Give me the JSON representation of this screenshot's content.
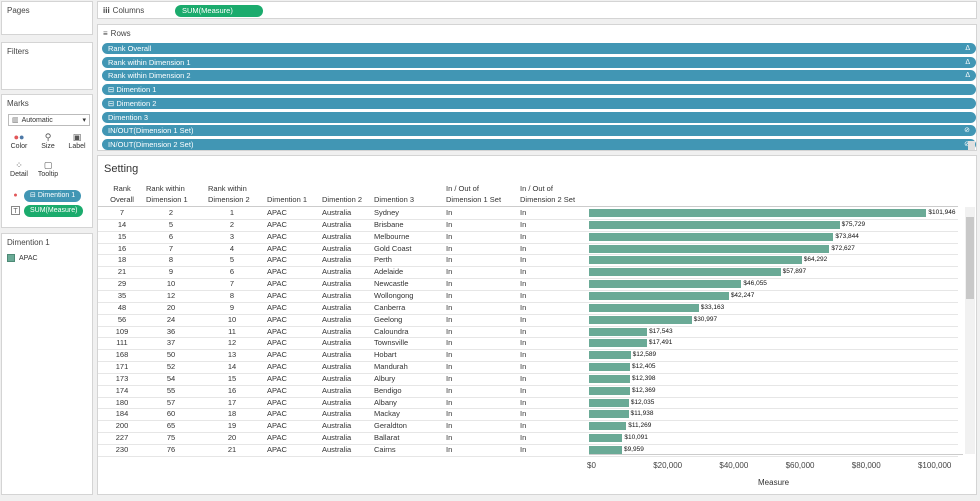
{
  "left": {
    "pages_title": "Pages",
    "filters_title": "Filters",
    "marks_title": "Marks",
    "mark_type": "Automatic",
    "mark_buttons": [
      "Color",
      "Size",
      "Label",
      "Detail",
      "Tooltip"
    ],
    "mark_fields": [
      {
        "label": "Dimention 1",
        "color": "#4196b4"
      },
      {
        "label": "SUM(Measure)",
        "color": "#1bab6d"
      }
    ],
    "legend_title": "Dimention 1",
    "legend_item": "APAC",
    "legend_color": "#6aaa96"
  },
  "shelves": {
    "columns_label": "Columns",
    "columns_pill": "SUM(Measure)",
    "rows_label": "Rows",
    "row_pills": [
      {
        "label": "Rank Overall",
        "icon": "Δ"
      },
      {
        "label": "Rank within Dimension 1",
        "icon": "Δ"
      },
      {
        "label": "Rank within Dimension 2",
        "icon": "Δ"
      },
      {
        "label": "Dimention 1",
        "icon": ""
      },
      {
        "label": "Dimention 2",
        "icon": ""
      },
      {
        "label": "Dimention 3",
        "icon": ""
      },
      {
        "label": "IN/OUT(Dimension 1 Set)",
        "icon": "⊘"
      },
      {
        "label": "IN/OUT(Dimension 2 Set)",
        "icon": "⊘"
      }
    ]
  },
  "view": {
    "title": "Setting",
    "headers": {
      "rank_overall": [
        "Rank",
        "Overall"
      ],
      "rank_d1": [
        "Rank within",
        "Dimension 1"
      ],
      "rank_d2": [
        "Rank within",
        "Dimension 2"
      ],
      "dim1": [
        "Dimention 1"
      ],
      "dim2": [
        "Dimention 2"
      ],
      "dim3": [
        "Dimention 3"
      ],
      "in1": [
        "In / Out of",
        "Dimension 1 Set"
      ],
      "in2": [
        "In / Out of",
        "Dimension 2 Set"
      ]
    },
    "axis_title": "Measure",
    "axis_ticks": [
      {
        "value": 0,
        "label": "$0"
      },
      {
        "value": 20000,
        "label": "$20,000"
      },
      {
        "value": 40000,
        "label": "$40,000"
      },
      {
        "value": 60000,
        "label": "$60,000"
      },
      {
        "value": 80000,
        "label": "$80,000"
      },
      {
        "value": 100000,
        "label": "$100,000"
      }
    ],
    "axis_max": 113000,
    "bar_color": "#6aaa96"
  },
  "chart_data": {
    "type": "bar",
    "orientation": "horizontal",
    "xlabel": "Measure",
    "xlim": [
      0,
      113000
    ],
    "rows": [
      {
        "rank_overall": "7",
        "rank_d1": "2",
        "rank_d2": "1",
        "dim1": "APAC",
        "dim2": "Australia",
        "dim3": "Sydney",
        "in1": "In",
        "in2": "In",
        "value": 101946,
        "label": "$101,946"
      },
      {
        "rank_overall": "14",
        "rank_d1": "5",
        "rank_d2": "2",
        "dim1": "APAC",
        "dim2": "Australia",
        "dim3": "Brisbane",
        "in1": "In",
        "in2": "In",
        "value": 75729,
        "label": "$75,729"
      },
      {
        "rank_overall": "15",
        "rank_d1": "6",
        "rank_d2": "3",
        "dim1": "APAC",
        "dim2": "Australia",
        "dim3": "Melbourne",
        "in1": "In",
        "in2": "In",
        "value": 73844,
        "label": "$73,844"
      },
      {
        "rank_overall": "16",
        "rank_d1": "7",
        "rank_d2": "4",
        "dim1": "APAC",
        "dim2": "Australia",
        "dim3": "Gold Coast",
        "in1": "In",
        "in2": "In",
        "value": 72627,
        "label": "$72,627"
      },
      {
        "rank_overall": "18",
        "rank_d1": "8",
        "rank_d2": "5",
        "dim1": "APAC",
        "dim2": "Australia",
        "dim3": "Perth",
        "in1": "In",
        "in2": "In",
        "value": 64292,
        "label": "$64,292"
      },
      {
        "rank_overall": "21",
        "rank_d1": "9",
        "rank_d2": "6",
        "dim1": "APAC",
        "dim2": "Australia",
        "dim3": "Adelaide",
        "in1": "In",
        "in2": "In",
        "value": 57897,
        "label": "$57,897"
      },
      {
        "rank_overall": "29",
        "rank_d1": "10",
        "rank_d2": "7",
        "dim1": "APAC",
        "dim2": "Australia",
        "dim3": "Newcastle",
        "in1": "In",
        "in2": "In",
        "value": 46055,
        "label": "$46,055"
      },
      {
        "rank_overall": "35",
        "rank_d1": "12",
        "rank_d2": "8",
        "dim1": "APAC",
        "dim2": "Australia",
        "dim3": "Wollongong",
        "in1": "In",
        "in2": "In",
        "value": 42247,
        "label": "$42,247"
      },
      {
        "rank_overall": "48",
        "rank_d1": "20",
        "rank_d2": "9",
        "dim1": "APAC",
        "dim2": "Australia",
        "dim3": "Canberra",
        "in1": "In",
        "in2": "In",
        "value": 33163,
        "label": "$33,163"
      },
      {
        "rank_overall": "56",
        "rank_d1": "24",
        "rank_d2": "10",
        "dim1": "APAC",
        "dim2": "Australia",
        "dim3": "Geelong",
        "in1": "In",
        "in2": "In",
        "value": 30997,
        "label": "$30,997"
      },
      {
        "rank_overall": "109",
        "rank_d1": "36",
        "rank_d2": "11",
        "dim1": "APAC",
        "dim2": "Australia",
        "dim3": "Caloundra",
        "in1": "In",
        "in2": "In",
        "value": 17543,
        "label": "$17,543"
      },
      {
        "rank_overall": "111",
        "rank_d1": "37",
        "rank_d2": "12",
        "dim1": "APAC",
        "dim2": "Australia",
        "dim3": "Townsville",
        "in1": "In",
        "in2": "In",
        "value": 17491,
        "label": "$17,491"
      },
      {
        "rank_overall": "168",
        "rank_d1": "50",
        "rank_d2": "13",
        "dim1": "APAC",
        "dim2": "Australia",
        "dim3": "Hobart",
        "in1": "In",
        "in2": "In",
        "value": 12589,
        "label": "$12,589"
      },
      {
        "rank_overall": "171",
        "rank_d1": "52",
        "rank_d2": "14",
        "dim1": "APAC",
        "dim2": "Australia",
        "dim3": "Mandurah",
        "in1": "In",
        "in2": "In",
        "value": 12405,
        "label": "$12,405"
      },
      {
        "rank_overall": "173",
        "rank_d1": "54",
        "rank_d2": "15",
        "dim1": "APAC",
        "dim2": "Australia",
        "dim3": "Albury",
        "in1": "In",
        "in2": "In",
        "value": 12398,
        "label": "$12,398"
      },
      {
        "rank_overall": "174",
        "rank_d1": "55",
        "rank_d2": "16",
        "dim1": "APAC",
        "dim2": "Australia",
        "dim3": "Bendigo",
        "in1": "In",
        "in2": "In",
        "value": 12369,
        "label": "$12,369"
      },
      {
        "rank_overall": "180",
        "rank_d1": "57",
        "rank_d2": "17",
        "dim1": "APAC",
        "dim2": "Australia",
        "dim3": "Albany",
        "in1": "In",
        "in2": "In",
        "value": 12035,
        "label": "$12,035"
      },
      {
        "rank_overall": "184",
        "rank_d1": "60",
        "rank_d2": "18",
        "dim1": "APAC",
        "dim2": "Australia",
        "dim3": "Mackay",
        "in1": "In",
        "in2": "In",
        "value": 11938,
        "label": "$11,938"
      },
      {
        "rank_overall": "200",
        "rank_d1": "65",
        "rank_d2": "19",
        "dim1": "APAC",
        "dim2": "Australia",
        "dim3": "Geraldton",
        "in1": "In",
        "in2": "In",
        "value": 11269,
        "label": "$11,269"
      },
      {
        "rank_overall": "227",
        "rank_d1": "75",
        "rank_d2": "20",
        "dim1": "APAC",
        "dim2": "Australia",
        "dim3": "Ballarat",
        "in1": "In",
        "in2": "In",
        "value": 10091,
        "label": "$10,091"
      },
      {
        "rank_overall": "230",
        "rank_d1": "76",
        "rank_d2": "21",
        "dim1": "APAC",
        "dim2": "Australia",
        "dim3": "Cairns",
        "in1": "In",
        "in2": "In",
        "value": 9959,
        "label": "$9,959"
      }
    ]
  }
}
